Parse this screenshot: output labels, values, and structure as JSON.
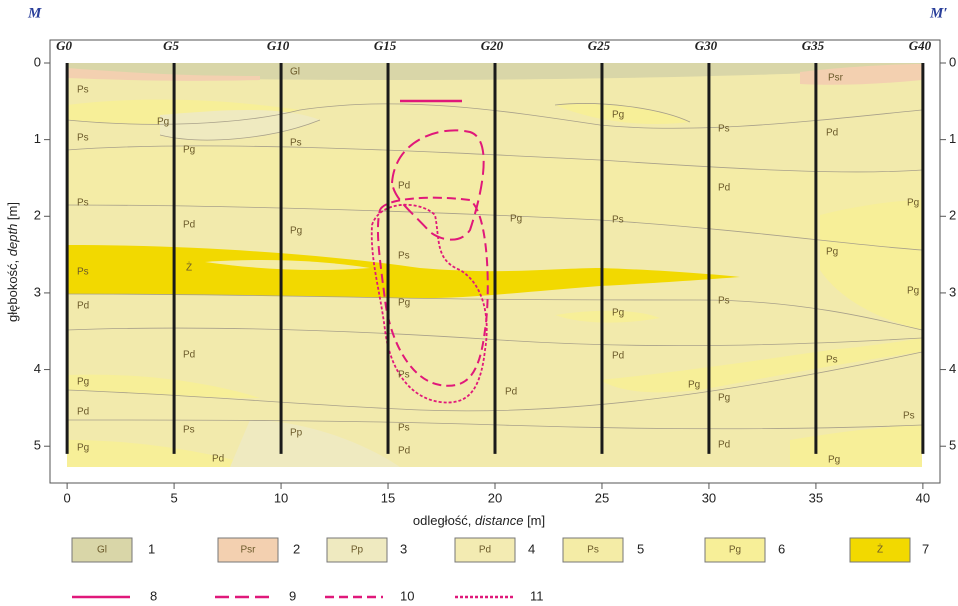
{
  "chart_data": {
    "type": "cross-section",
    "title_left": "M",
    "title_right": "M′",
    "xlabel": {
      "text": "odległość, ",
      "term": "distance",
      "unit": " [m]"
    },
    "ylabel": {
      "text": "głębokość, ",
      "term": "depth",
      "unit": " [m]"
    },
    "xlim": [
      -0.8,
      40.8
    ],
    "xticks": [
      0,
      5,
      10,
      15,
      20,
      25,
      30,
      35,
      40
    ],
    "ylim": [
      -0.3,
      5.48
    ],
    "yticks": [
      0,
      1,
      2,
      3,
      4,
      5
    ],
    "boreholes": {
      "names": [
        "G0",
        "G5",
        "G10",
        "G15",
        "G20",
        "G25",
        "G30",
        "G35",
        "G40"
      ],
      "x": [
        0,
        5,
        10,
        15,
        20,
        25,
        30,
        35,
        40
      ],
      "bottom": [
        5.1,
        5.1,
        5.1,
        5.1,
        5.1,
        5.1,
        5.1,
        5.1,
        5.1
      ],
      "color": "#1a1a1a"
    },
    "soil_labels": [
      "Gl",
      "Psr",
      "Ps",
      "Pg",
      "Ps",
      "Pg",
      "Ps",
      "Ps",
      "Pd",
      "Pg",
      "Ps",
      "Ż",
      "Pd",
      "Pd",
      "Pg",
      "Pd",
      "Ps",
      "Pd",
      "Pg",
      "Pp",
      "Pd",
      "Ps",
      "Pg",
      "Ps",
      "Ps",
      "Pd",
      "Pg",
      "Pd",
      "Pg",
      "Ps",
      "Pg",
      "Pd",
      "Ps",
      "Pd",
      "Ps",
      "Pg",
      "Pg",
      "Pd",
      "Pd",
      "Pg",
      "Ps",
      "Pg",
      "Ps",
      "Pg",
      "Pg"
    ],
    "legend_units": [
      {
        "code": "Gl",
        "number": "1",
        "color": "#d9d6a8"
      },
      {
        "code": "Psr",
        "number": "2",
        "color": "#f3d0b0"
      },
      {
        "code": "Pp",
        "number": "3",
        "color": "#efeac0"
      },
      {
        "code": "Pd",
        "number": "4",
        "color": "#f3ebb2"
      },
      {
        "code": "Ps",
        "number": "5",
        "color": "#f4eca6"
      },
      {
        "code": "Pg",
        "number": "6",
        "color": "#f7ef98"
      },
      {
        "code": "Ż",
        "number": "7",
        "color": "#f2d900"
      }
    ],
    "legend_lines": [
      {
        "number": "8",
        "dash": "none"
      },
      {
        "number": "9",
        "dash": "14 6"
      },
      {
        "number": "10",
        "dash": "9 5"
      },
      {
        "number": "11",
        "dash": "3 2"
      }
    ],
    "line_color": "#e0187a"
  }
}
